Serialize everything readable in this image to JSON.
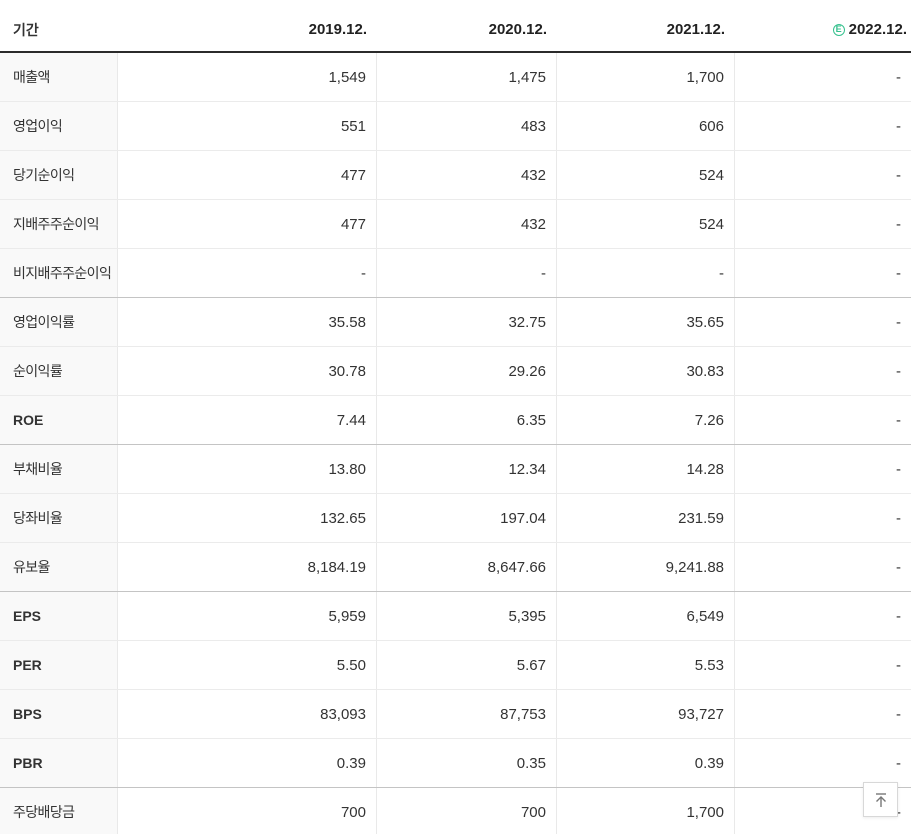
{
  "table": {
    "header": {
      "period_label": "기간",
      "columns": [
        "2019.12.",
        "2020.12.",
        "2021.12.",
        "2022.12."
      ],
      "estimate_badge": "E"
    },
    "rows": [
      {
        "label": "매출액",
        "values": [
          "1,549",
          "1,475",
          "1,700",
          "-"
        ],
        "group_end": false
      },
      {
        "label": "영업이익",
        "values": [
          "551",
          "483",
          "606",
          "-"
        ],
        "group_end": false
      },
      {
        "label": "당기순이익",
        "values": [
          "477",
          "432",
          "524",
          "-"
        ],
        "group_end": false
      },
      {
        "label": "지배주주순이익",
        "values": [
          "477",
          "432",
          "524",
          "-"
        ],
        "group_end": false
      },
      {
        "label": "비지배주주순이익",
        "values": [
          "-",
          "-",
          "-",
          "-"
        ],
        "group_end": true
      },
      {
        "label": "영업이익률",
        "values": [
          "35.58",
          "32.75",
          "35.65",
          "-"
        ],
        "group_end": false
      },
      {
        "label": "순이익률",
        "values": [
          "30.78",
          "29.26",
          "30.83",
          "-"
        ],
        "group_end": false
      },
      {
        "label": "ROE",
        "values": [
          "7.44",
          "6.35",
          "7.26",
          "-"
        ],
        "group_end": true
      },
      {
        "label": "부채비율",
        "values": [
          "13.80",
          "12.34",
          "14.28",
          "-"
        ],
        "group_end": false
      },
      {
        "label": "당좌비율",
        "values": [
          "132.65",
          "197.04",
          "231.59",
          "-"
        ],
        "group_end": false
      },
      {
        "label": "유보율",
        "values": [
          "8,184.19",
          "8,647.66",
          "9,241.88",
          "-"
        ],
        "group_end": true
      },
      {
        "label": "EPS",
        "values": [
          "5,959",
          "5,395",
          "6,549",
          "-"
        ],
        "group_end": false
      },
      {
        "label": "PER",
        "values": [
          "5.50",
          "5.67",
          "5.53",
          "-"
        ],
        "group_end": false
      },
      {
        "label": "BPS",
        "values": [
          "83,093",
          "87,753",
          "93,727",
          "-"
        ],
        "group_end": false
      },
      {
        "label": "PBR",
        "values": [
          "0.39",
          "0.35",
          "0.39",
          "-"
        ],
        "group_end": true
      },
      {
        "label": "주당배당금",
        "values": [
          "700",
          "700",
          "1,700",
          "-"
        ],
        "group_end": false
      }
    ]
  },
  "icons": {
    "estimate_badge": "circled-E-estimate",
    "scroll_top": "arrow-up-to-top"
  },
  "colors": {
    "estimate_green": "#36c18e",
    "header_rule": "#2b2b2b",
    "row_border": "#ebebeb",
    "group_border": "#c4c4c4",
    "label_bg": "#f9f9f9",
    "text": "#333333"
  }
}
